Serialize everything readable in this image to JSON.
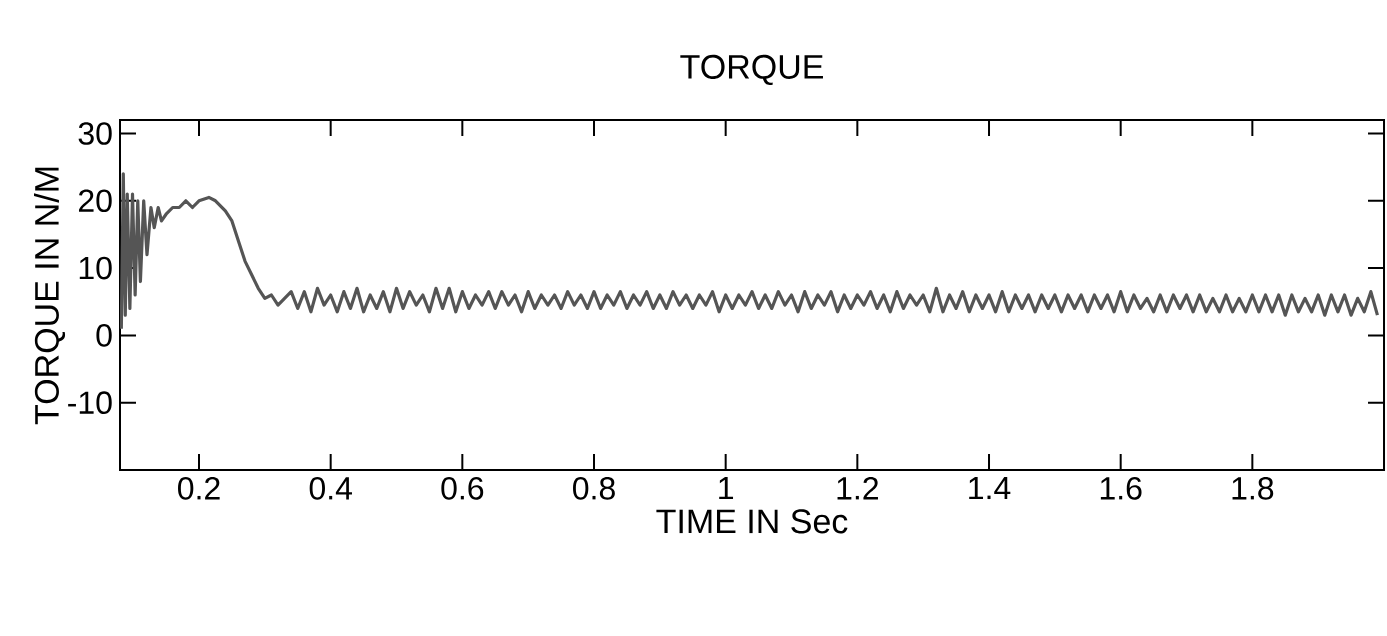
{
  "chart_data": {
    "type": "line",
    "title": "TORQUE",
    "xlabel": "TIME IN Sec",
    "ylabel": "TORQUE IN N/M",
    "color": "#555555",
    "line_style": "solid",
    "xlim": [
      0.08,
      2.0
    ],
    "ylim": [
      -20,
      32
    ],
    "xticks": [
      0.2,
      0.4,
      0.6,
      0.8,
      1,
      1.2,
      1.4,
      1.6,
      1.8
    ],
    "yticks": [
      -10,
      0,
      10,
      20,
      30
    ],
    "x": [
      0.082,
      0.085,
      0.088,
      0.091,
      0.095,
      0.099,
      0.103,
      0.107,
      0.111,
      0.116,
      0.121,
      0.127,
      0.132,
      0.138,
      0.143,
      0.15,
      0.16,
      0.17,
      0.18,
      0.19,
      0.2,
      0.215,
      0.225,
      0.24,
      0.25,
      0.26,
      0.27,
      0.28,
      0.29,
      0.3,
      0.31,
      0.32,
      0.33,
      0.34,
      0.35,
      0.36,
      0.37,
      0.38,
      0.39,
      0.4,
      0.41,
      0.42,
      0.43,
      0.44,
      0.45,
      0.46,
      0.47,
      0.48,
      0.49,
      0.5,
      0.51,
      0.52,
      0.53,
      0.54,
      0.55,
      0.56,
      0.57,
      0.58,
      0.59,
      0.6,
      0.61,
      0.62,
      0.63,
      0.64,
      0.65,
      0.66,
      0.67,
      0.68,
      0.69,
      0.7,
      0.71,
      0.72,
      0.73,
      0.74,
      0.75,
      0.76,
      0.77,
      0.78,
      0.79,
      0.8,
      0.81,
      0.82,
      0.83,
      0.84,
      0.85,
      0.86,
      0.87,
      0.88,
      0.89,
      0.9,
      0.91,
      0.92,
      0.93,
      0.94,
      0.95,
      0.96,
      0.97,
      0.98,
      0.99,
      1.0,
      1.01,
      1.02,
      1.03,
      1.04,
      1.05,
      1.06,
      1.07,
      1.08,
      1.09,
      1.1,
      1.11,
      1.12,
      1.13,
      1.14,
      1.15,
      1.16,
      1.17,
      1.18,
      1.19,
      1.2,
      1.21,
      1.22,
      1.23,
      1.24,
      1.25,
      1.26,
      1.27,
      1.28,
      1.29,
      1.3,
      1.31,
      1.32,
      1.33,
      1.34,
      1.35,
      1.36,
      1.37,
      1.38,
      1.39,
      1.4,
      1.41,
      1.42,
      1.43,
      1.44,
      1.45,
      1.46,
      1.47,
      1.48,
      1.49,
      1.5,
      1.51,
      1.52,
      1.53,
      1.54,
      1.55,
      1.56,
      1.57,
      1.58,
      1.59,
      1.6,
      1.61,
      1.62,
      1.63,
      1.64,
      1.65,
      1.66,
      1.67,
      1.68,
      1.69,
      1.7,
      1.71,
      1.72,
      1.73,
      1.74,
      1.75,
      1.76,
      1.77,
      1.78,
      1.79,
      1.8,
      1.81,
      1.82,
      1.83,
      1.84,
      1.85,
      1.86,
      1.87,
      1.88,
      1.89,
      1.9,
      1.91,
      1.92,
      1.93,
      1.94,
      1.95,
      1.96,
      1.97,
      1.98,
      1.99
    ],
    "values": [
      1,
      24,
      3,
      21,
      4,
      21,
      6,
      20,
      8,
      20,
      12,
      19,
      16,
      19,
      17,
      18,
      19,
      19,
      20,
      19,
      20,
      20.5,
      20,
      18.5,
      17,
      14,
      11,
      9,
      7,
      5.5,
      6,
      4.5,
      5.5,
      6.5,
      4,
      6.5,
      3.5,
      7,
      4.5,
      6,
      3.5,
      6.5,
      4,
      7,
      3.5,
      6,
      4,
      6.5,
      3.5,
      7,
      4,
      6.5,
      4.5,
      6,
      3.5,
      7,
      4,
      7,
      3.5,
      6.5,
      4,
      6,
      4.5,
      6.5,
      4,
      6.5,
      4.5,
      6,
      3.5,
      6.5,
      4,
      6,
      4.5,
      6,
      4,
      6.5,
      4.5,
      6,
      4,
      6.5,
      4,
      6,
      4.5,
      6.5,
      4,
      6,
      4.5,
      6.5,
      4,
      6,
      4,
      6.5,
      4.5,
      6,
      4,
      6,
      4.5,
      6.5,
      3.5,
      6,
      4,
      6,
      4.5,
      6.5,
      4,
      6,
      4,
      6.5,
      4.5,
      6,
      3.5,
      6.5,
      4,
      6,
      4.5,
      6.5,
      3.5,
      6,
      4,
      6,
      4.5,
      6.5,
      4,
      6,
      3.5,
      6.5,
      4,
      6,
      4.5,
      6,
      3.5,
      7,
      3.5,
      6,
      4,
      6.5,
      3.5,
      6,
      4,
      6,
      3.5,
      6.5,
      3.5,
      6,
      4,
      6,
      3.5,
      6,
      4,
      6,
      3.5,
      6,
      4,
      6,
      3.5,
      6,
      4,
      6,
      3.5,
      6.5,
      3.5,
      6,
      4,
      5.5,
      3.5,
      6,
      3.5,
      6,
      4,
      6,
      3.5,
      6,
      3.5,
      5.5,
      3.5,
      6,
      3.5,
      5.5,
      3.5,
      6,
      3.5,
      6,
      3.5,
      6,
      3,
      6,
      3.5,
      5.5,
      3.5,
      6,
      3,
      6,
      3.5,
      6,
      3,
      5.5,
      3.5,
      6.5,
      3
    ]
  }
}
